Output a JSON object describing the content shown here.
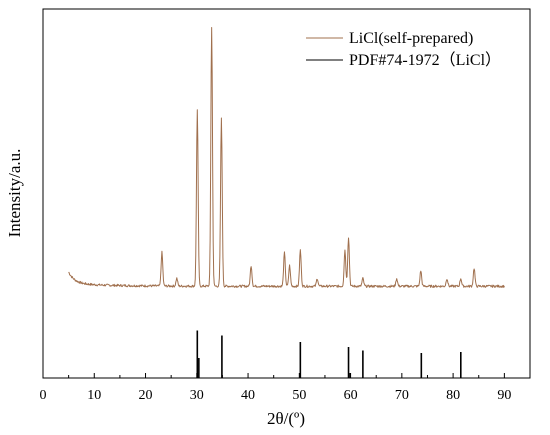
{
  "chart_data": {
    "type": "line",
    "title": "",
    "xlabel": "2θ/(º)",
    "ylabel": "Intensity/a.u.",
    "xlim": [
      0,
      95
    ],
    "x_ticks": [
      "0",
      "10",
      "20",
      "30",
      "40",
      "50",
      "60",
      "70",
      "80",
      "90"
    ],
    "legend_position": "top-right",
    "grid": false,
    "series": [
      {
        "name": "LiCl(self-prepared)",
        "color": "#a0704e",
        "kind": "xrd-pattern",
        "baseline_end": 0.03,
        "peaks": [
          {
            "x": 23.2,
            "intensity": 0.13
          },
          {
            "x": 26.1,
            "intensity": 0.03
          },
          {
            "x": 30.1,
            "intensity": 0.68
          },
          {
            "x": 32.9,
            "intensity": 1.0
          },
          {
            "x": 34.8,
            "intensity": 0.65
          },
          {
            "x": 40.6,
            "intensity": 0.08
          },
          {
            "x": 47.1,
            "intensity": 0.13
          },
          {
            "x": 48.1,
            "intensity": 0.08
          },
          {
            "x": 50.2,
            "intensity": 0.14
          },
          {
            "x": 53.5,
            "intensity": 0.03
          },
          {
            "x": 58.9,
            "intensity": 0.14
          },
          {
            "x": 59.6,
            "intensity": 0.19
          },
          {
            "x": 62.4,
            "intensity": 0.03
          },
          {
            "x": 69.0,
            "intensity": 0.03
          },
          {
            "x": 73.7,
            "intensity": 0.06
          },
          {
            "x": 78.8,
            "intensity": 0.03
          },
          {
            "x": 81.5,
            "intensity": 0.03
          },
          {
            "x": 84.1,
            "intensity": 0.07
          }
        ]
      },
      {
        "name": "PDF#74-1972（LiCl）",
        "color": "#000000",
        "kind": "reference-sticks",
        "x": [
          30.1,
          30.4,
          34.9,
          50.2,
          59.6,
          59.9,
          62.4,
          73.8,
          81.5
        ],
        "values": [
          0.95,
          0.4,
          0.85,
          0.72,
          0.62,
          0.1,
          0.55,
          0.5,
          0.52
        ]
      }
    ]
  }
}
